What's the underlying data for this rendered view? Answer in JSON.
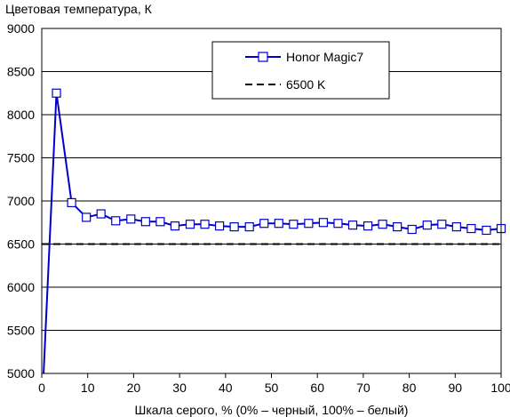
{
  "chart_data": {
    "type": "line",
    "title": "Цветовая температура, К",
    "xlabel": "Шкала серого, % (0% – черный, 100% – белый)",
    "ylabel": "",
    "xlim": [
      0,
      100
    ],
    "ylim": [
      5000,
      9000
    ],
    "x_ticks": [
      "0",
      "10",
      "20",
      "30",
      "40",
      "50",
      "60",
      "70",
      "80",
      "90",
      "100"
    ],
    "y_ticks": [
      "5000",
      "5500",
      "6000",
      "6500",
      "7000",
      "7500",
      "8000",
      "8500",
      "9000"
    ],
    "grid": "horizontal",
    "legend_position": "top-right",
    "series": [
      {
        "name": "Honor Magic7",
        "color": "#0000cc",
        "style": "solid-line-square-markers",
        "x": [
          0.4,
          3.2,
          6.5,
          9.7,
          12.9,
          16.1,
          19.4,
          22.6,
          25.8,
          29.0,
          32.3,
          35.5,
          38.7,
          41.9,
          45.2,
          48.4,
          51.6,
          54.8,
          58.1,
          61.3,
          64.5,
          67.7,
          71.0,
          74.2,
          77.4,
          80.6,
          83.9,
          87.1,
          90.3,
          93.5,
          96.8,
          100.0
        ],
        "values": [
          5000,
          8250,
          6980,
          6810,
          6850,
          6770,
          6790,
          6760,
          6760,
          6710,
          6730,
          6730,
          6710,
          6700,
          6700,
          6740,
          6740,
          6730,
          6740,
          6750,
          6740,
          6720,
          6710,
          6730,
          6700,
          6670,
          6720,
          6730,
          6700,
          6680,
          6660,
          6680
        ]
      },
      {
        "name": "6500 K",
        "color": "#000000",
        "style": "dashed",
        "x": [
          0,
          100
        ],
        "values": [
          6500,
          6500
        ]
      }
    ]
  }
}
